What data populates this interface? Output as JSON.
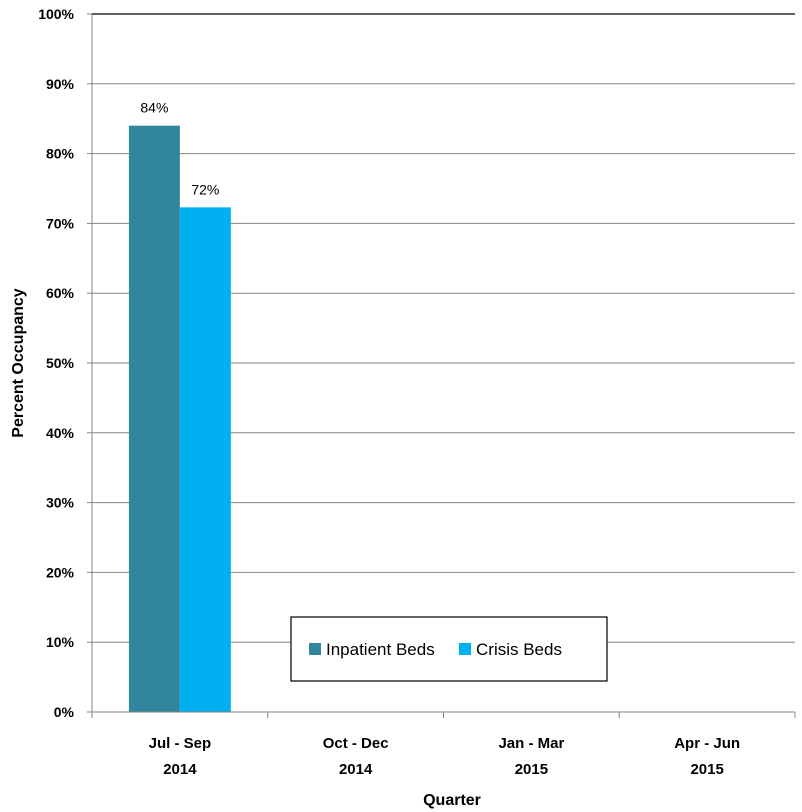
{
  "chart_data": {
    "type": "bar",
    "categories": [
      [
        "Jul - Sep",
        "2014"
      ],
      [
        "Oct - Dec",
        "2014"
      ],
      [
        "Jan - Mar",
        "2015"
      ],
      [
        "Apr - Jun",
        "2015"
      ]
    ],
    "series": [
      {
        "name": "Inpatient Beds",
        "color": "#31859C",
        "values": [
          84,
          null,
          null,
          null
        ],
        "labels": [
          "84%",
          "",
          "",
          ""
        ]
      },
      {
        "name": "Crisis Beds",
        "color": "#00B0F0",
        "values": [
          72.3,
          null,
          null,
          null
        ],
        "labels": [
          "72%",
          "",
          "",
          ""
        ]
      }
    ],
    "xlabel": "Quarter",
    "ylabel": "Percent Occupancy",
    "ylim": [
      0,
      100
    ],
    "yticks": [
      0,
      10,
      20,
      30,
      40,
      50,
      60,
      70,
      80,
      90,
      100
    ],
    "ytick_labels": [
      "0%",
      "10%",
      "20%",
      "30%",
      "40%",
      "50%",
      "60%",
      "70%",
      "80%",
      "90%",
      "100%"
    ],
    "grid": true,
    "legend": "bottom-center"
  }
}
